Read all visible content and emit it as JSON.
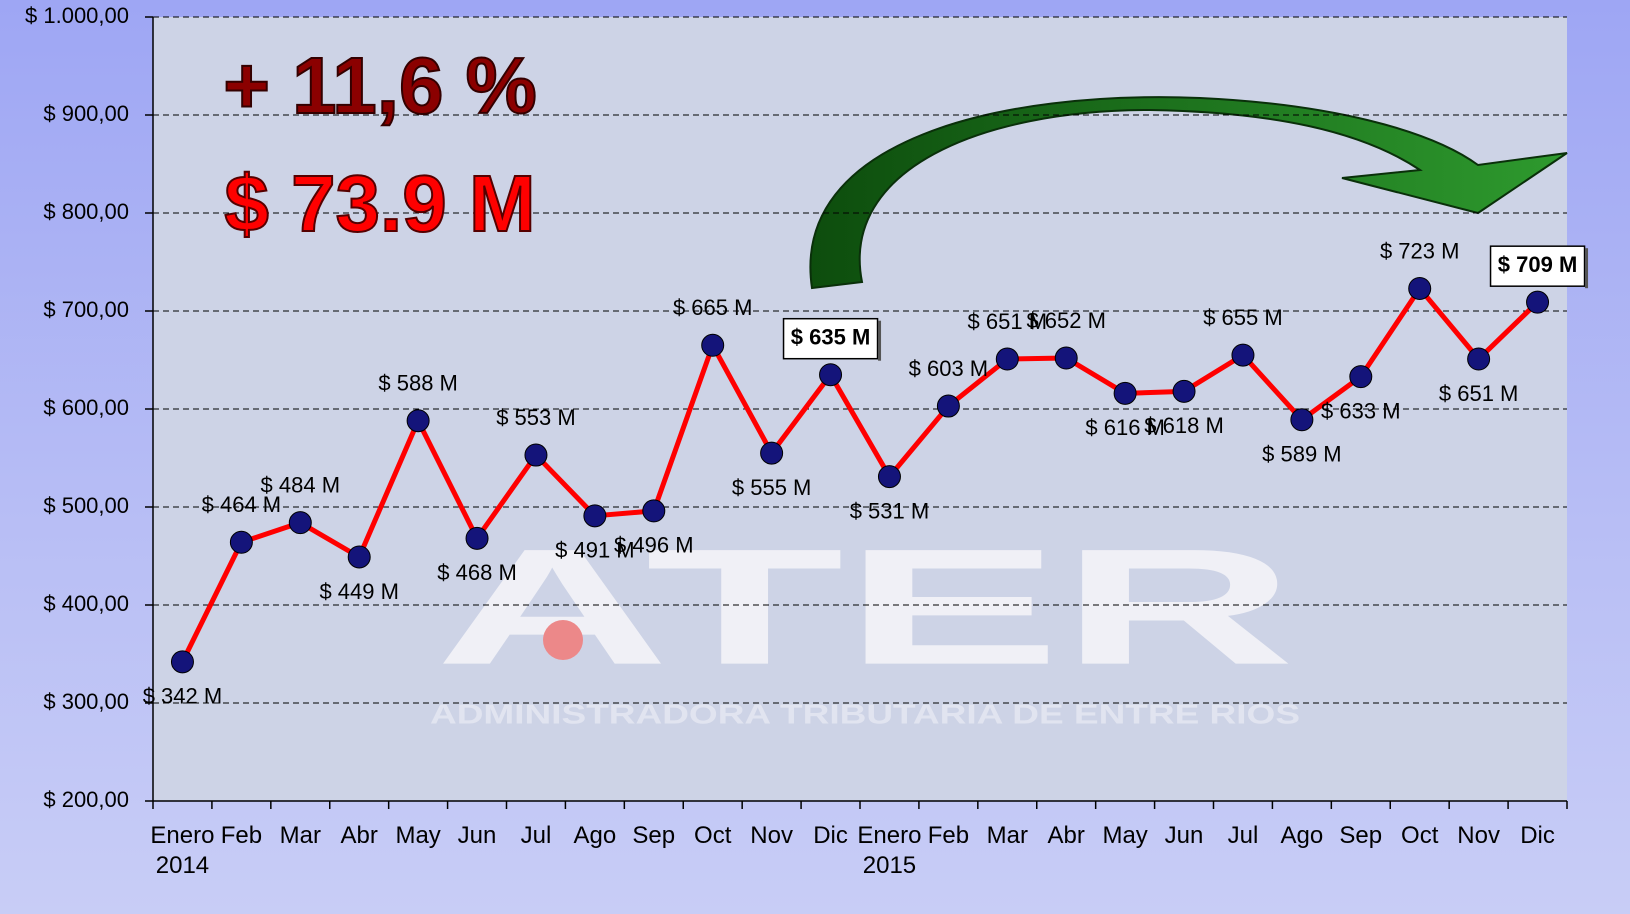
{
  "chart_data": {
    "type": "line",
    "annotations": [
      "+ 11,6 %",
      "$ 73.9 M"
    ],
    "watermark": {
      "logo": "ATER",
      "subtitle": "ADMINISTRADORA TRIBUTARIA DE ENTRE RIOS"
    },
    "categories": [
      "Enero\n2014",
      "Feb",
      "Mar",
      "Abr",
      "May",
      "Jun",
      "Jul",
      "Ago",
      "Sep",
      "Oct",
      "Nov",
      "Dic",
      "Enero\n2015",
      "Feb",
      "Mar",
      "Abr",
      "May",
      "Jun",
      "Jul",
      "Ago",
      "Sep",
      "Oct",
      "Nov",
      "Dic"
    ],
    "series": [
      {
        "color": "#ff0000",
        "marker_color": "#14147a",
        "values": [
          342,
          464,
          484,
          449,
          588,
          468,
          553,
          491,
          496,
          665,
          555,
          635,
          531,
          603,
          651,
          652,
          616,
          618,
          655,
          589,
          633,
          723,
          651,
          709
        ],
        "value_labels": [
          "$ 342 M",
          "$ 464 M",
          "$ 484 M",
          "$ 449 M",
          "$ 588 M",
          "$ 468 M",
          "$ 553 M",
          "$ 491 M",
          "$ 496 M",
          "$ 665 M",
          "$ 555 M",
          "$ 635 M",
          "$ 531 M",
          "$ 603 M",
          "$ 651 M",
          "$ 652 M",
          "$ 616 M",
          "$ 618 M",
          "$ 655 M",
          "$ 589 M",
          "$ 633 M",
          "$ 723 M",
          "$ 651 M",
          "$ 709 M"
        ],
        "highlighted_points": [
          11,
          23
        ]
      }
    ],
    "ylim": [
      200,
      1000
    ],
    "yticks": [
      {
        "value": 200,
        "label": "$ 200,00"
      },
      {
        "value": 300,
        "label": "$ 300,00"
      },
      {
        "value": 400,
        "label": "$ 400,00"
      },
      {
        "value": 500,
        "label": "$ 500,00"
      },
      {
        "value": 600,
        "label": "$ 600,00"
      },
      {
        "value": 700,
        "label": "$ 700,00"
      },
      {
        "value": 800,
        "label": "$ 800,00"
      },
      {
        "value": 900,
        "label": "$ 900,00"
      },
      {
        "value": 1000,
        "label": "$ 1.000,00"
      }
    ],
    "grid": true
  }
}
